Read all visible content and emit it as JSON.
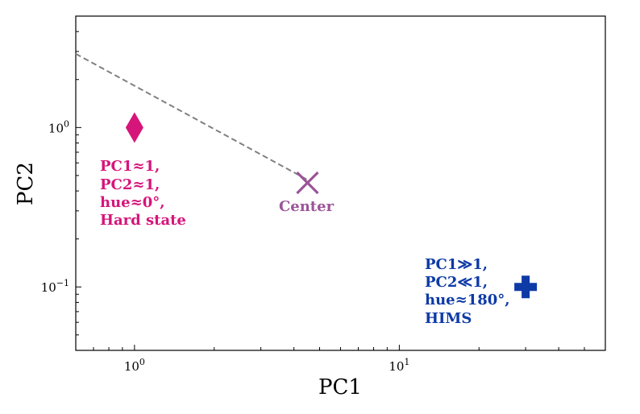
{
  "chart_data": {
    "type": "scatter",
    "xlabel": "PC1",
    "ylabel": "PC2",
    "xscale": "log",
    "yscale": "log",
    "xlim": [
      0.6,
      60
    ],
    "ylim": [
      0.04,
      5
    ],
    "grid": false,
    "x_ticks": [
      {
        "value": 1,
        "base": "10",
        "exp": "0"
      },
      {
        "value": 10,
        "base": "10",
        "exp": "1"
      }
    ],
    "y_ticks": [
      {
        "value": 1,
        "base": "10",
        "exp": "0"
      },
      {
        "value": 0.1,
        "base": "10",
        "exp": "−1"
      }
    ],
    "points": [
      {
        "name": "hard-state",
        "x": 1.0,
        "y": 1.0,
        "marker": "diamond",
        "color": "#d6157a",
        "lines": [
          "PC1≈1,",
          "PC2≈1,",
          "hue≈0°,",
          "Hard state"
        ]
      },
      {
        "name": "center",
        "x": 4.5,
        "y": 0.45,
        "marker": "x",
        "color": "#9b5497",
        "lines": [
          "Center"
        ]
      },
      {
        "name": "hims",
        "x": 30,
        "y": 0.1,
        "marker": "plus",
        "color": "#0d3aa6",
        "lines": [
          "PC1≫1,",
          "PC2≪1,",
          "hue≈180°,",
          "HIMS"
        ]
      }
    ],
    "guide_line": {
      "x": [
        0.6,
        4.5
      ],
      "y": [
        2.9,
        0.47
      ],
      "style": "dashed",
      "color": "#808080"
    }
  }
}
